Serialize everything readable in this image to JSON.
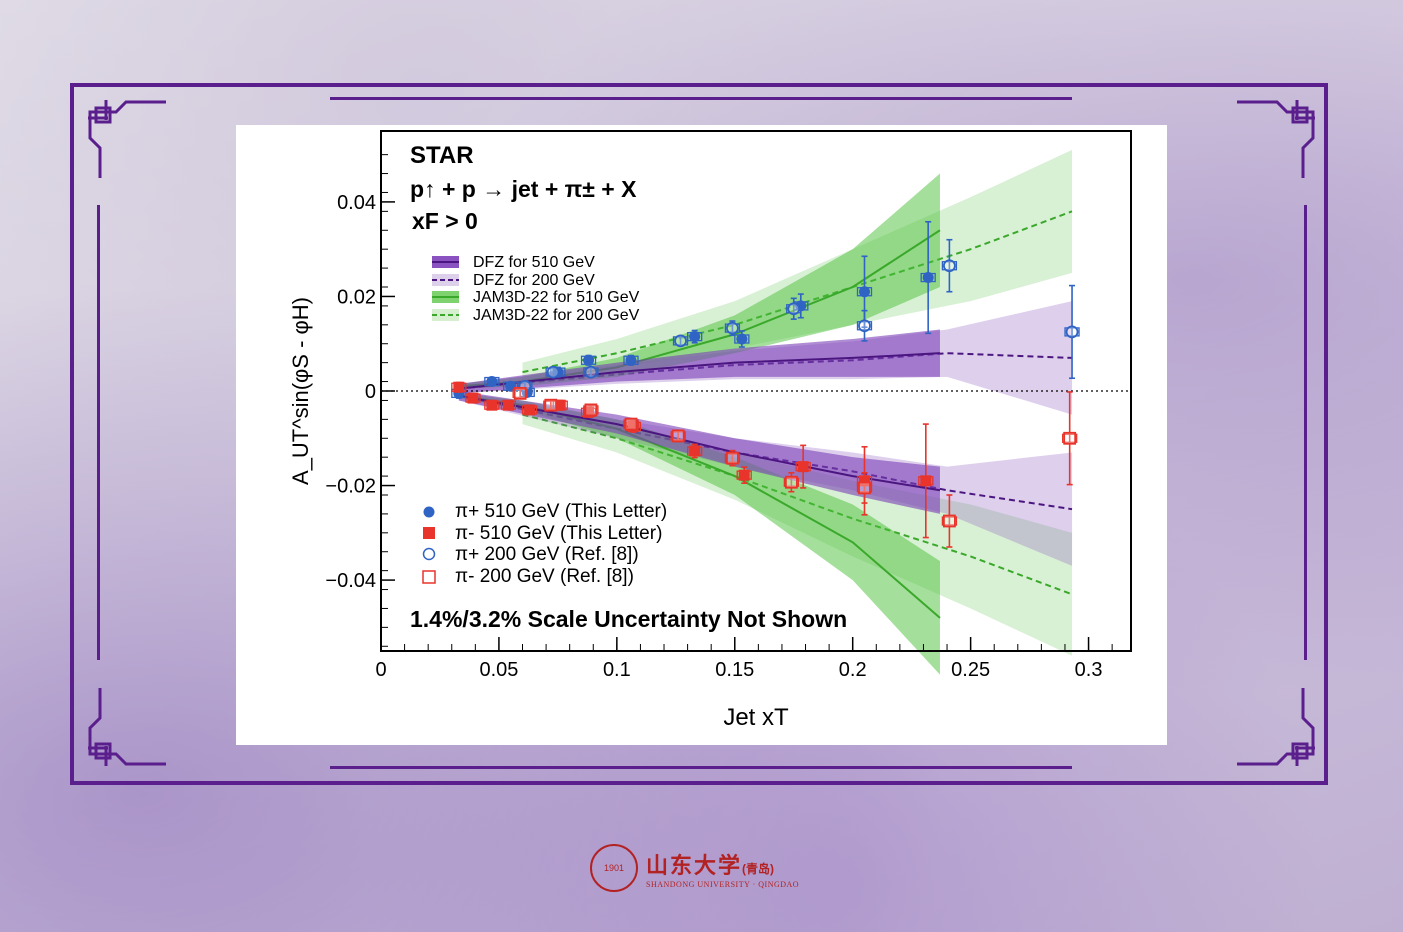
{
  "colors": {
    "frame": "#5a1f8c",
    "blue": "#2f63c4",
    "red": "#e8342a",
    "dfz": "#6a2fa0",
    "jam": "#4cbf3a"
  },
  "logo": {
    "name": "山东大学",
    "campus": "(青岛)",
    "english": "SHANDONG UNIVERSITY · QINGDAO",
    "seal_text": "1901"
  },
  "chart_data": {
    "type": "scatter",
    "title_lines": [
      "STAR",
      "p↑ + p → jet + π± + X",
      "xF > 0"
    ],
    "note": "1.4%/3.2% Scale Uncertainty Not Shown",
    "xlabel": "Jet xT",
    "ylabel": "A_UT^sin(φS - φH)",
    "xlim": [
      0,
      0.318
    ],
    "ylim": [
      -0.055,
      0.055
    ],
    "xticks": [
      0,
      0.05,
      0.1,
      0.15,
      0.2,
      0.25,
      0.3
    ],
    "xtick_labels": [
      "0",
      "0.05",
      "0.1",
      "0.15",
      "0.2",
      "0.25",
      "0.3"
    ],
    "yticks": [
      -0.04,
      -0.02,
      0,
      0.02,
      0.04
    ],
    "ytick_labels": [
      "−0.04",
      "−0.02",
      "0",
      "0.02",
      "0.04"
    ],
    "model_legend": [
      "DFZ for 510 GeV",
      "DFZ for 200 GeV",
      "JAM3D-22 for 510 GeV",
      "JAM3D-22 for 200 GeV"
    ],
    "data_legend": [
      "π+ 510 GeV (This Letter)",
      "π- 510 GeV (This Letter)",
      "π+ 200 GeV (Ref. [8])",
      "π- 200 GeV (Ref. [8])"
    ],
    "bands": [
      {
        "name": "JAM3D-22 200 GeV",
        "style": "jam200",
        "x": [
          0.06,
          0.1,
          0.15,
          0.2,
          0.25,
          0.293
        ],
        "pos": [
          0.004,
          0.008,
          0.014,
          0.022,
          0.03,
          0.038
        ],
        "neg": [
          -0.005,
          -0.01,
          -0.018,
          -0.027,
          -0.035,
          -0.043
        ],
        "err": [
          0.002,
          0.003,
          0.005,
          0.008,
          0.011,
          0.013
        ]
      },
      {
        "name": "DFZ 200 GeV",
        "style": "dfz200",
        "x": [
          0.033,
          0.1,
          0.15,
          0.2,
          0.24,
          0.293
        ],
        "pos": [
          0.0005,
          0.0035,
          0.0055,
          0.0065,
          0.008,
          0.007
        ],
        "neg": [
          -0.001,
          -0.008,
          -0.013,
          -0.017,
          -0.021,
          -0.025
        ],
        "err": [
          0.001,
          0.002,
          0.003,
          0.004,
          0.005,
          0.012
        ]
      },
      {
        "name": "JAM3D-22 510 GeV",
        "style": "jam510",
        "x": [
          0.033,
          0.06,
          0.1,
          0.15,
          0.2,
          0.237
        ],
        "pos": [
          0.001,
          0.002,
          0.005,
          0.012,
          0.022,
          0.034
        ],
        "neg": [
          -0.001,
          -0.003,
          -0.008,
          -0.018,
          -0.032,
          -0.048
        ],
        "err": [
          0.0005,
          0.001,
          0.002,
          0.004,
          0.008,
          0.012
        ]
      },
      {
        "name": "DFZ 510 GeV",
        "style": "dfz510",
        "x": [
          0.033,
          0.1,
          0.15,
          0.2,
          0.237
        ],
        "pos": [
          0.0005,
          0.004,
          0.006,
          0.007,
          0.008
        ],
        "neg": [
          -0.001,
          -0.007,
          -0.013,
          -0.018,
          -0.021
        ],
        "err": [
          0.001,
          0.002,
          0.003,
          0.004,
          0.005
        ]
      }
    ],
    "series": [
      {
        "name": "π+ 510 GeV",
        "marker": "circle-filled",
        "color": "blue",
        "x": [
          0.033,
          0.047,
          0.055,
          0.062,
          0.075,
          0.088,
          0.106,
          0.133,
          0.153,
          0.178,
          0.205,
          0.232
        ],
        "y": [
          -0.0005,
          0.002,
          0.001,
          -0.0003,
          0.004,
          0.0065,
          0.0065,
          0.0115,
          0.011,
          0.018,
          0.021,
          0.024
        ],
        "err": [
          0.001,
          0.0007,
          0.0007,
          0.0008,
          0.001,
          0.001,
          0.001,
          0.0013,
          0.0017,
          0.0025,
          0.0075,
          0.0118
        ]
      },
      {
        "name": "π- 510 GeV",
        "marker": "square-filled",
        "color": "red",
        "x": [
          0.033,
          0.039,
          0.047,
          0.054,
          0.063,
          0.076,
          0.088,
          0.107,
          0.133,
          0.154,
          0.179,
          0.205,
          0.231
        ],
        "y": [
          0.0008,
          -0.0015,
          -0.003,
          -0.003,
          -0.004,
          -0.003,
          -0.0045,
          -0.0075,
          -0.0127,
          -0.0178,
          -0.016,
          -0.019,
          -0.019
        ],
        "err": [
          0.001,
          0.0009,
          0.0007,
          0.0007,
          0.0008,
          0.001,
          0.001,
          0.0012,
          0.0014,
          0.0017,
          0.0045,
          0.0072,
          0.012
        ]
      },
      {
        "name": "π+ 200 GeV",
        "marker": "circle-open",
        "color": "blue",
        "x": [
          0.061,
          0.073,
          0.089,
          0.127,
          0.149,
          0.175,
          0.205,
          0.241,
          0.293
        ],
        "y": [
          0.001,
          0.004,
          0.004,
          0.0106,
          0.0133,
          0.0174,
          0.0138,
          0.0265,
          0.0125
        ],
        "err": [
          0.001,
          0.001,
          0.001,
          0.001,
          0.0015,
          0.0022,
          0.0032,
          0.0055,
          0.0098
        ]
      },
      {
        "name": "π- 200 GeV",
        "marker": "square-open",
        "color": "red",
        "x": [
          0.059,
          0.072,
          0.089,
          0.106,
          0.126,
          0.149,
          0.174,
          0.205,
          0.241,
          0.292
        ],
        "y": [
          -0.0005,
          -0.003,
          -0.004,
          -0.007,
          -0.0095,
          -0.0142,
          -0.0193,
          -0.0205,
          -0.0275,
          -0.01
        ],
        "err": [
          0.001,
          0.001,
          0.001,
          0.001,
          0.0012,
          0.0016,
          0.002,
          0.0032,
          0.0055,
          0.0098
        ]
      }
    ]
  }
}
